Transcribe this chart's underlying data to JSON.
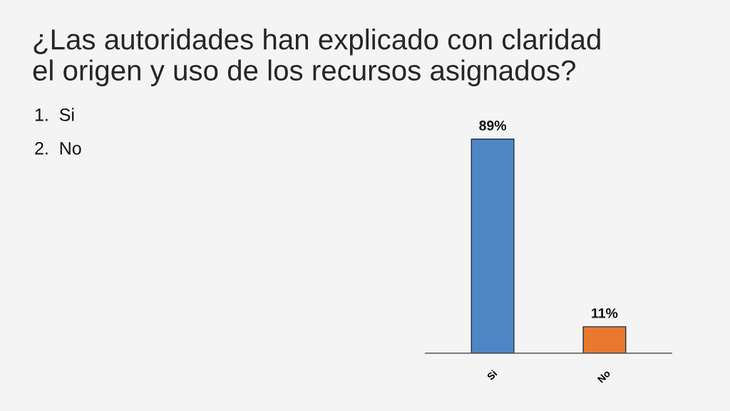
{
  "chart_data": {
    "type": "bar",
    "title": "¿Las autoridades han explicado con claridad el origen y uso de los recursos asignados?",
    "annotations": [
      "1.  Si",
      "2.  No"
    ],
    "categories": [
      "Si",
      "No"
    ],
    "values": [
      89,
      11
    ],
    "colors": [
      "#4f86c6",
      "#e8792f"
    ],
    "value_labels": [
      "89%",
      "11%"
    ]
  }
}
